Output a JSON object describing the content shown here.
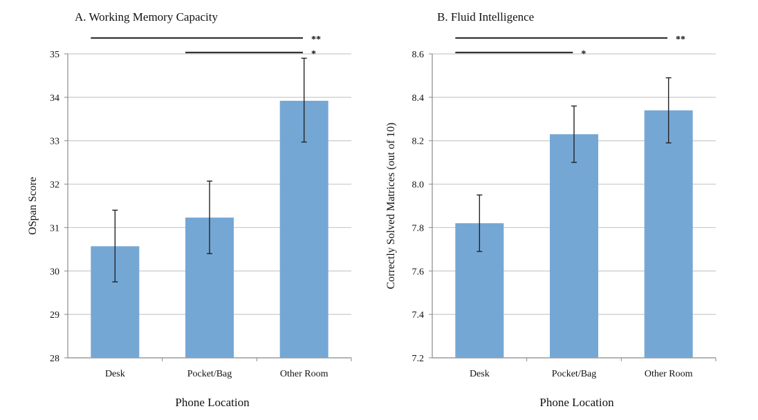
{
  "colors": {
    "bar": "#75a7d5",
    "grid": "#c9c9c9",
    "axis": "#888888",
    "error": "#222222",
    "sig_line": "#333333"
  },
  "chart_data": [
    {
      "type": "bar",
      "title": "A. Working Memory Capacity",
      "xlabel": "Phone Location",
      "ylabel": "OSpan Score",
      "categories": [
        "Desk",
        "Pocket/Bag",
        "Other Room"
      ],
      "values": [
        30.57,
        31.23,
        33.92
      ],
      "error_low": [
        29.75,
        30.4,
        32.97
      ],
      "error_high": [
        31.4,
        32.07,
        34.9
      ],
      "ylim": [
        28,
        35
      ],
      "yticks": [
        "28",
        "29",
        "30",
        "31",
        "32",
        "33",
        "34",
        "35"
      ],
      "grid": true,
      "significance": [
        {
          "from": 0,
          "to": 2,
          "label": "**"
        },
        {
          "from": 1,
          "to": 2,
          "label": "*"
        }
      ]
    },
    {
      "type": "bar",
      "title": "B. Fluid Intelligence",
      "xlabel": "Phone Location",
      "ylabel": "Correctly Solved Matrices (out of 10)",
      "categories": [
        "Desk",
        "Pocket/Bag",
        "Other Room"
      ],
      "values": [
        7.82,
        8.23,
        8.34
      ],
      "error_low": [
        7.69,
        8.1,
        8.19
      ],
      "error_high": [
        7.95,
        8.36,
        8.49
      ],
      "ylim": [
        7.2,
        8.6
      ],
      "yticks": [
        "7.2",
        "7.4",
        "7.6",
        "7.8",
        "8.0",
        "8.2",
        "8.4",
        "8.6"
      ],
      "grid": true,
      "significance": [
        {
          "from": 0,
          "to": 2,
          "label": "**"
        },
        {
          "from": 0,
          "to": 1,
          "label": "*"
        }
      ]
    }
  ]
}
